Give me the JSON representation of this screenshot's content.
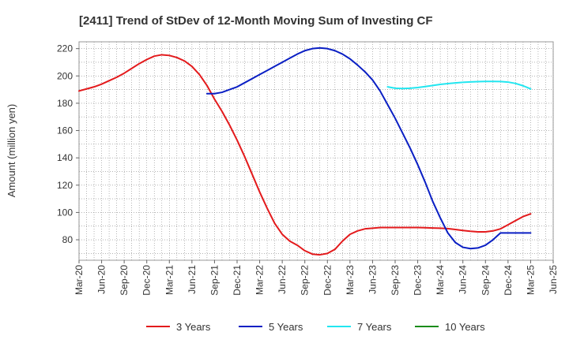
{
  "chart_data": {
    "type": "line",
    "title": "[2411]  Trend of StDev of 12-Month Moving Sum of Investing CF",
    "ylabel": "Amount (million yen)",
    "xlabel": "",
    "ylim": [
      65,
      225
    ],
    "yticks": [
      80,
      100,
      120,
      140,
      160,
      180,
      200,
      220
    ],
    "grid": true,
    "legend_position": "bottom",
    "x_tick_labels": [
      "Mar-20",
      "Jun-20",
      "Sep-20",
      "Dec-20",
      "Mar-21",
      "Jun-21",
      "Sep-21",
      "Dec-21",
      "Mar-22",
      "Jun-22",
      "Sep-22",
      "Dec-22",
      "Mar-23",
      "Jun-23",
      "Sep-23",
      "Dec-23",
      "Mar-24",
      "Jun-24",
      "Sep-24",
      "Dec-24",
      "Mar-25",
      "Jun-25"
    ],
    "series": [
      {
        "name": "3 Years",
        "color": "#e31a1c",
        "x": [
          "Mar-20",
          "Apr-20",
          "May-20",
          "Jun-20",
          "Jul-20",
          "Aug-20",
          "Sep-20",
          "Oct-20",
          "Nov-20",
          "Dec-20",
          "Jan-21",
          "Feb-21",
          "Mar-21",
          "Apr-21",
          "May-21",
          "Jun-21",
          "Jul-21",
          "Aug-21",
          "Sep-21",
          "Oct-21",
          "Nov-21",
          "Dec-21",
          "Jan-22",
          "Feb-22",
          "Mar-22",
          "Apr-22",
          "May-22",
          "Jun-22",
          "Jul-22",
          "Aug-22",
          "Sep-22",
          "Oct-22",
          "Nov-22",
          "Dec-22",
          "Jan-23",
          "Feb-23",
          "Mar-23",
          "Apr-23",
          "May-23",
          "Jun-23",
          "Jul-23",
          "Aug-23",
          "Sep-23",
          "Oct-23",
          "Nov-23",
          "Dec-23",
          "Jan-24",
          "Feb-24",
          "Mar-24",
          "Apr-24",
          "May-24",
          "Jun-24",
          "Jul-24",
          "Aug-24",
          "Sep-24",
          "Oct-24",
          "Nov-24",
          "Dec-24",
          "Jan-25",
          "Feb-25",
          "Mar-25"
        ],
        "values": [
          189,
          190.5,
          192,
          194,
          196.5,
          199,
          202,
          205.5,
          209,
          212,
          214.5,
          215.5,
          215,
          213.5,
          211,
          207,
          201,
          193,
          183,
          174,
          164,
          153,
          141,
          128,
          115,
          103,
          92,
          84,
          79,
          76,
          72,
          69.5,
          69,
          70,
          73,
          79,
          84,
          86.5,
          88,
          88.5,
          89,
          89,
          89,
          89,
          89,
          89,
          88.8,
          88.6,
          88.5,
          88.2,
          87.5,
          86.8,
          86.2,
          85.8,
          85.8,
          86.5,
          88,
          91,
          94,
          97,
          99
        ]
      },
      {
        "name": "5 Years",
        "color": "#0a1fc4",
        "x": [
          "Aug-21",
          "Sep-21",
          "Oct-21",
          "Nov-21",
          "Dec-21",
          "Jan-22",
          "Feb-22",
          "Mar-22",
          "Apr-22",
          "May-22",
          "Jun-22",
          "Jul-22",
          "Aug-22",
          "Sep-22",
          "Oct-22",
          "Nov-22",
          "Dec-22",
          "Jan-23",
          "Feb-23",
          "Mar-23",
          "Apr-23",
          "May-23",
          "Jun-23",
          "Jul-23",
          "Aug-23",
          "Sep-23",
          "Oct-23",
          "Nov-23",
          "Dec-23",
          "Jan-24",
          "Feb-24",
          "Mar-24",
          "Apr-24",
          "May-24",
          "Jun-24",
          "Jul-24",
          "Aug-24",
          "Sep-24",
          "Oct-24",
          "Nov-24",
          "Dec-24",
          "Jan-25",
          "Feb-25",
          "Mar-25"
        ],
        "values": [
          187,
          187,
          188,
          190,
          192,
          195,
          198,
          201,
          204,
          207,
          210,
          213,
          216,
          218.5,
          220,
          220.5,
          220,
          218.5,
          216,
          212.5,
          208,
          203,
          197,
          189,
          179,
          169,
          158,
          147,
          135,
          122,
          108,
          96,
          85,
          78,
          74.5,
          73.5,
          74,
          76,
          80,
          85,
          85,
          85,
          85,
          85
        ]
      },
      {
        "name": "7 Years",
        "color": "#22e6f0",
        "x": [
          "Aug-23",
          "Sep-23",
          "Oct-23",
          "Nov-23",
          "Dec-23",
          "Jan-24",
          "Feb-24",
          "Mar-24",
          "Apr-24",
          "May-24",
          "Jun-24",
          "Jul-24",
          "Aug-24",
          "Sep-24",
          "Oct-24",
          "Nov-24",
          "Dec-24",
          "Jan-25",
          "Feb-25",
          "Mar-25"
        ],
        "values": [
          192,
          191,
          190.8,
          191,
          191.5,
          192.2,
          193,
          193.8,
          194.4,
          194.9,
          195.3,
          195.6,
          195.8,
          196,
          196,
          195.9,
          195.5,
          194.5,
          192.8,
          190.5
        ]
      },
      {
        "name": "10 Years",
        "color": "#1a8c1a",
        "x": [],
        "values": []
      }
    ]
  }
}
